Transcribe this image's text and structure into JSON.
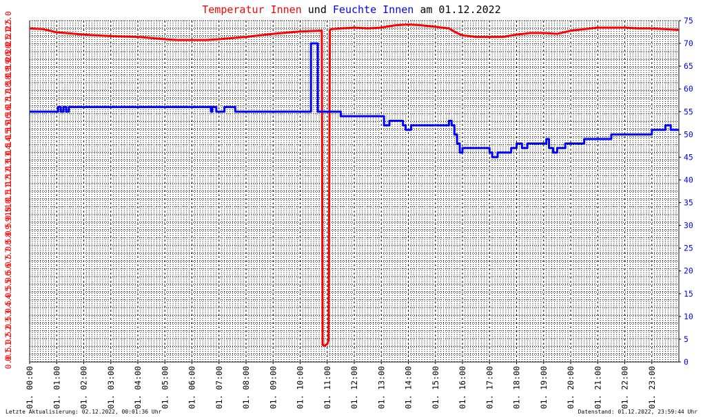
{
  "title": {
    "part1": "Temperatur Innen",
    "part2": " und ",
    "part3": "Feuchte Innen",
    "part4": " am 01.12.2022",
    "color_temp": "#ff0000",
    "color_hum": "#0000ff",
    "color_text": "#000000"
  },
  "footer": {
    "left": "Letzte Aktualisierung: 02.12.2022, 00:01:36 Uhr",
    "right": "Datenstand: 01.12.2022, 23:59:44 Uhr"
  },
  "chart_data": {
    "type": "line",
    "x_unit": "hour of day",
    "xlim": [
      0,
      24
    ],
    "x_tick_labels": [
      "01. 00:00",
      "01. 01:00",
      "01. 02:00",
      "01. 03:00",
      "01. 04:00",
      "01. 05:00",
      "01. 06:00",
      "01. 07:00",
      "01. 08:00",
      "01. 09:00",
      "01. 10:00",
      "01. 11:00",
      "01. 12:00",
      "01. 13:00",
      "01. 14:00",
      "01. 15:00",
      "01. 16:00",
      "01. 17:00",
      "01. 18:00",
      "01. 19:00",
      "01. 20:00",
      "01. 21:00",
      "01. 22:00",
      "01. 23:00"
    ],
    "y_left": {
      "lim": [
        0.0,
        22.0
      ],
      "ticks": [
        "0.0",
        "0.5",
        "1.0",
        "1.5",
        "2.0",
        "2.5",
        "3.0",
        "3.5",
        "4.0",
        "4.5",
        "5.0",
        "5.5",
        "6.0",
        "6.5",
        "7.0",
        "7.5",
        "8.0",
        "8.5",
        "9.0",
        "9.5",
        "10.0",
        "10.5",
        "11.0",
        "11.5",
        "12.0",
        "12.5",
        "13.0",
        "13.5",
        "14.0",
        "14.5",
        "15.0",
        "15.5",
        "16.0",
        "16.5",
        "17.0",
        "17.5",
        "18.0",
        "18.5",
        "19.0",
        "19.5",
        "20.0",
        "20.5",
        "21.0",
        "21.5",
        "22.0"
      ],
      "color": "#ff0000"
    },
    "y_right": {
      "lim": [
        0,
        75
      ],
      "ticks": [
        "0",
        "5",
        "10",
        "15",
        "20",
        "25",
        "30",
        "35",
        "40",
        "45",
        "50",
        "55",
        "60",
        "65",
        "70",
        "75"
      ],
      "color": "#0000ff"
    },
    "grid": true,
    "series": [
      {
        "name": "Temperatur Innen",
        "axis": "left",
        "color": "#ff0000",
        "x": [
          0.0,
          0.5,
          1.0,
          2.0,
          3.0,
          4.0,
          5.0,
          5.5,
          6.0,
          6.5,
          7.0,
          8.0,
          9.0,
          10.0,
          10.8,
          10.83,
          10.9,
          11.0,
          11.05,
          11.1,
          11.15,
          11.5,
          12.0,
          12.5,
          13.0,
          13.5,
          14.0,
          14.5,
          15.0,
          15.5,
          15.8,
          16.0,
          16.5,
          17.0,
          17.5,
          18.0,
          18.5,
          19.0,
          19.5,
          20.0,
          20.5,
          21.0,
          22.0,
          22.5,
          23.0,
          23.5,
          24.0
        ],
        "values": [
          21.5,
          21.45,
          21.25,
          21.1,
          21.0,
          20.95,
          20.8,
          20.75,
          20.75,
          20.75,
          20.8,
          20.95,
          21.15,
          21.3,
          21.35,
          1.1,
          1.05,
          1.15,
          1.4,
          21.4,
          21.45,
          21.5,
          21.55,
          21.5,
          21.55,
          21.7,
          21.75,
          21.7,
          21.6,
          21.5,
          21.2,
          21.05,
          20.95,
          20.95,
          20.95,
          21.1,
          21.2,
          21.2,
          21.15,
          21.35,
          21.45,
          21.55,
          21.55,
          21.5,
          21.5,
          21.45,
          21.4
        ]
      },
      {
        "name": "Feuchte Innen",
        "axis": "right",
        "color": "#0000ff",
        "x": [
          0.0,
          1.0,
          1.05,
          1.15,
          1.25,
          1.35,
          1.45,
          1.5,
          2.0,
          3.0,
          4.0,
          5.0,
          6.0,
          6.5,
          6.7,
          6.75,
          6.9,
          7.0,
          7.2,
          7.4,
          7.6,
          7.9,
          8.0,
          9.0,
          10.0,
          10.4,
          10.4,
          10.65,
          10.65,
          11.0,
          11.5,
          12.0,
          12.5,
          12.9,
          13.1,
          13.3,
          13.8,
          13.9,
          14.1,
          14.5,
          15.0,
          15.5,
          15.6,
          15.7,
          15.8,
          15.9,
          16.0,
          16.2,
          16.5,
          17.0,
          17.1,
          17.3,
          17.6,
          17.8,
          18.0,
          18.2,
          18.4,
          18.6,
          18.8,
          19.0,
          19.1,
          19.2,
          19.35,
          19.5,
          19.8,
          20.0,
          20.5,
          20.8,
          21.0,
          21.5,
          22.0,
          22.5,
          23.0,
          23.3,
          23.5,
          23.7,
          24.0
        ],
        "values": [
          55,
          55,
          56,
          55,
          56,
          55,
          56,
          56,
          56,
          56,
          56,
          56,
          56,
          56,
          55,
          56,
          55,
          55,
          56,
          56,
          55,
          55,
          55,
          55,
          55,
          55,
          70,
          70,
          55,
          55,
          54,
          54,
          54,
          54,
          52,
          53,
          52,
          51,
          52,
          52,
          52,
          53,
          52,
          50,
          48,
          46,
          47,
          47,
          47,
          46,
          45,
          46,
          46,
          47,
          48,
          47,
          48,
          48,
          48,
          48,
          49,
          47,
          46,
          47,
          48,
          48,
          49,
          49,
          49,
          50,
          50,
          50,
          51,
          51,
          52,
          51,
          51
        ]
      }
    ]
  }
}
